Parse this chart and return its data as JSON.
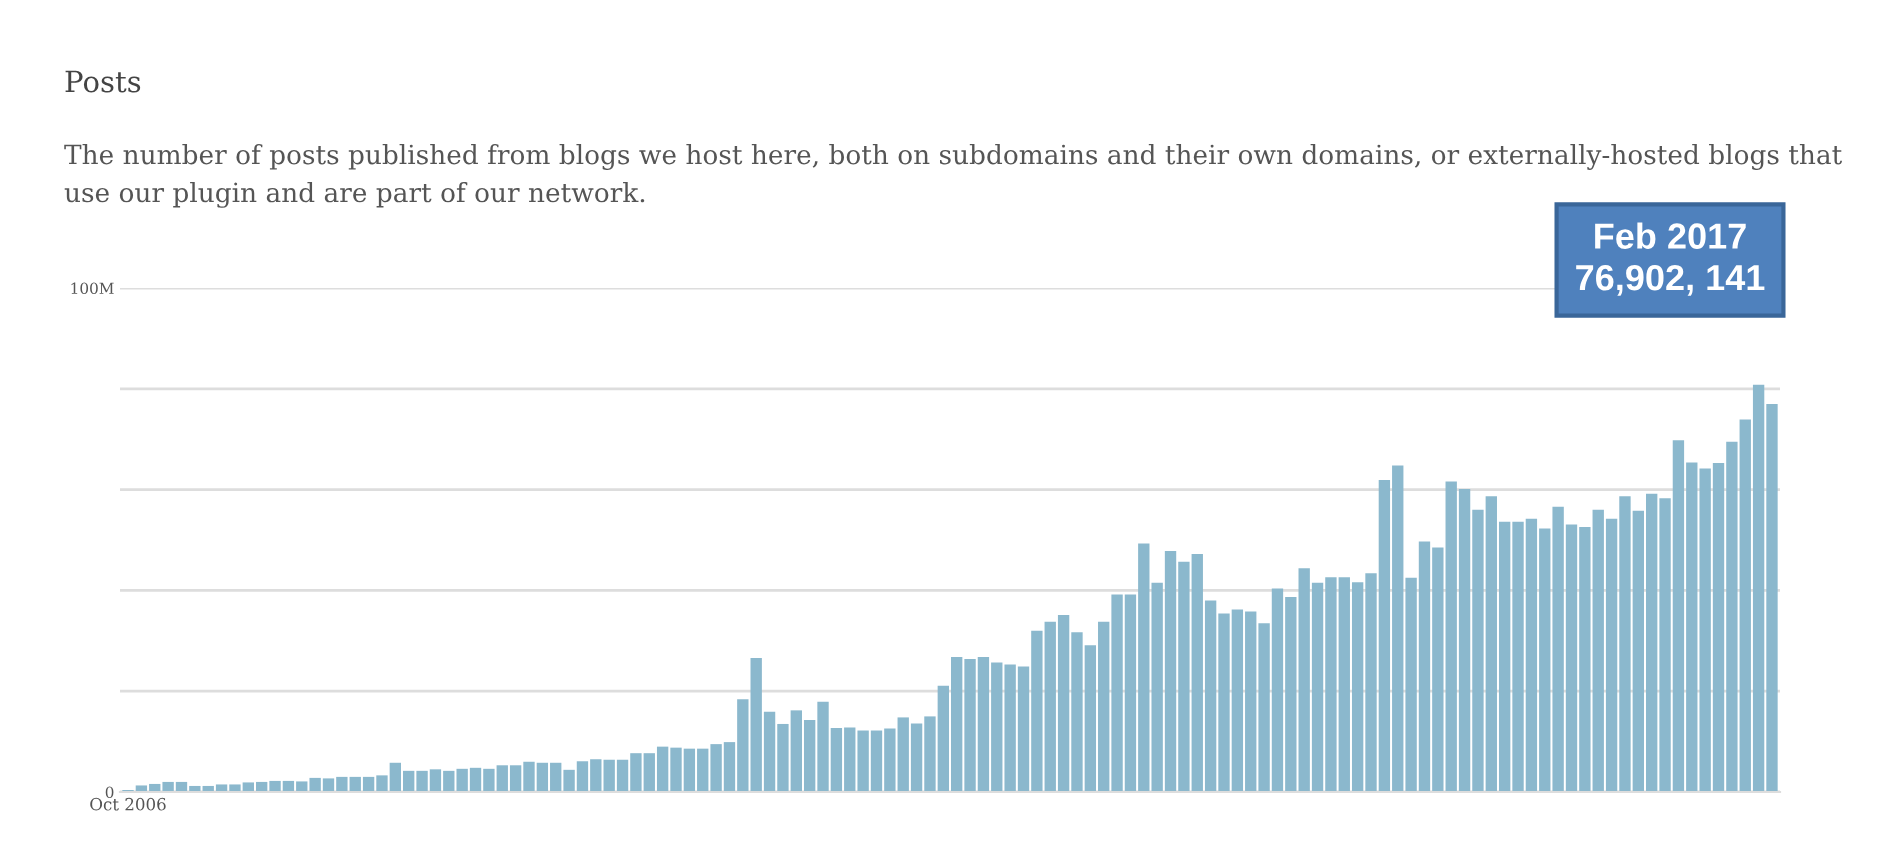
{
  "chart_data": {
    "type": "bar",
    "title": "Posts",
    "subtitle": "The number of posts published from blogs we host here, both on subdomains and their own domains, or externally-hosted blogs that use our plugin and are part of our network.",
    "categories": [
      "Oct 2006",
      null,
      null,
      null,
      null,
      null,
      null,
      null,
      null,
      null,
      null,
      null,
      null,
      null,
      null,
      null,
      null,
      null,
      null,
      null,
      null,
      null,
      null,
      null,
      null,
      null,
      null,
      null,
      null,
      null,
      null,
      null,
      null,
      null,
      null,
      null,
      null,
      null,
      null,
      null,
      null,
      null,
      null,
      null,
      null,
      null,
      null,
      null,
      null,
      null,
      null,
      null,
      null,
      null,
      null,
      null,
      null,
      null,
      null,
      null,
      null,
      null,
      null,
      null,
      null,
      null,
      null,
      null,
      null,
      null,
      null,
      null,
      null,
      null,
      null,
      null,
      null,
      null,
      null,
      null,
      null,
      null,
      null,
      null,
      null,
      null,
      null,
      null,
      null,
      null,
      null,
      null,
      null,
      null,
      null,
      null,
      null,
      null,
      null,
      null,
      null,
      null,
      null,
      null,
      null,
      null,
      null,
      null,
      null,
      null,
      null,
      null,
      null,
      null,
      null,
      null,
      null,
      null,
      null,
      null,
      null,
      null,
      null,
      null
    ],
    "values": [
      0.4,
      1.3,
      1.6,
      2,
      2,
      1.2,
      1.2,
      1.5,
      1.5,
      1.9,
      2,
      2.2,
      2.2,
      2.1,
      2.8,
      2.7,
      3,
      3,
      3,
      3.3,
      5.8,
      4.2,
      4.2,
      4.5,
      4.2,
      4.6,
      4.8,
      4.6,
      5.3,
      5.3,
      6,
      5.8,
      5.8,
      4.4,
      6.1,
      6.5,
      6.4,
      6.4,
      7.7,
      7.7,
      9,
      8.8,
      8.6,
      8.6,
      9.5,
      9.9,
      18.4,
      26.6,
      15.9,
      13.5,
      16.2,
      14.3,
      17.9,
      12.7,
      12.8,
      12.2,
      12.2,
      12.6,
      14.8,
      13.6,
      15,
      21.1,
      26.8,
      26.4,
      26.8,
      25.7,
      25.3,
      24.9,
      32,
      33.8,
      35.1,
      31.7,
      29.1,
      33.8,
      39.2,
      39.2,
      49.3,
      41.5,
      47.8,
      45.7,
      47.2,
      38,
      35.4,
      36.2,
      35.8,
      33.5,
      40.4,
      38.7,
      44.4,
      41.5,
      42.6,
      42.6,
      41.6,
      43.4,
      61.9,
      64.8,
      42.5,
      49.7,
      48.5,
      61.6,
      60.1,
      56,
      58.7,
      53.6,
      53.6,
      54.2,
      52.3,
      56.6,
      53.1,
      52.6,
      56,
      54.2,
      58.7,
      55.8,
      59.2,
      58.3,
      69.8,
      65.4,
      64.2,
      65.3,
      69.5,
      73.9,
      80.8,
      77
    ],
    "color": "#8bb8cd",
    "ylim": [
      0,
      100
    ],
    "yticks": [
      {
        "value": 0,
        "label": "0"
      },
      {
        "value": 20,
        "label": null
      },
      {
        "value": 40,
        "label": null
      },
      {
        "value": 60,
        "label": null
      },
      {
        "value": 80,
        "label": null
      },
      {
        "value": 100,
        "label": "100M"
      }
    ],
    "grid": "y",
    "annotations": [
      "Feb 2017\n76,902, 141"
    ]
  }
}
